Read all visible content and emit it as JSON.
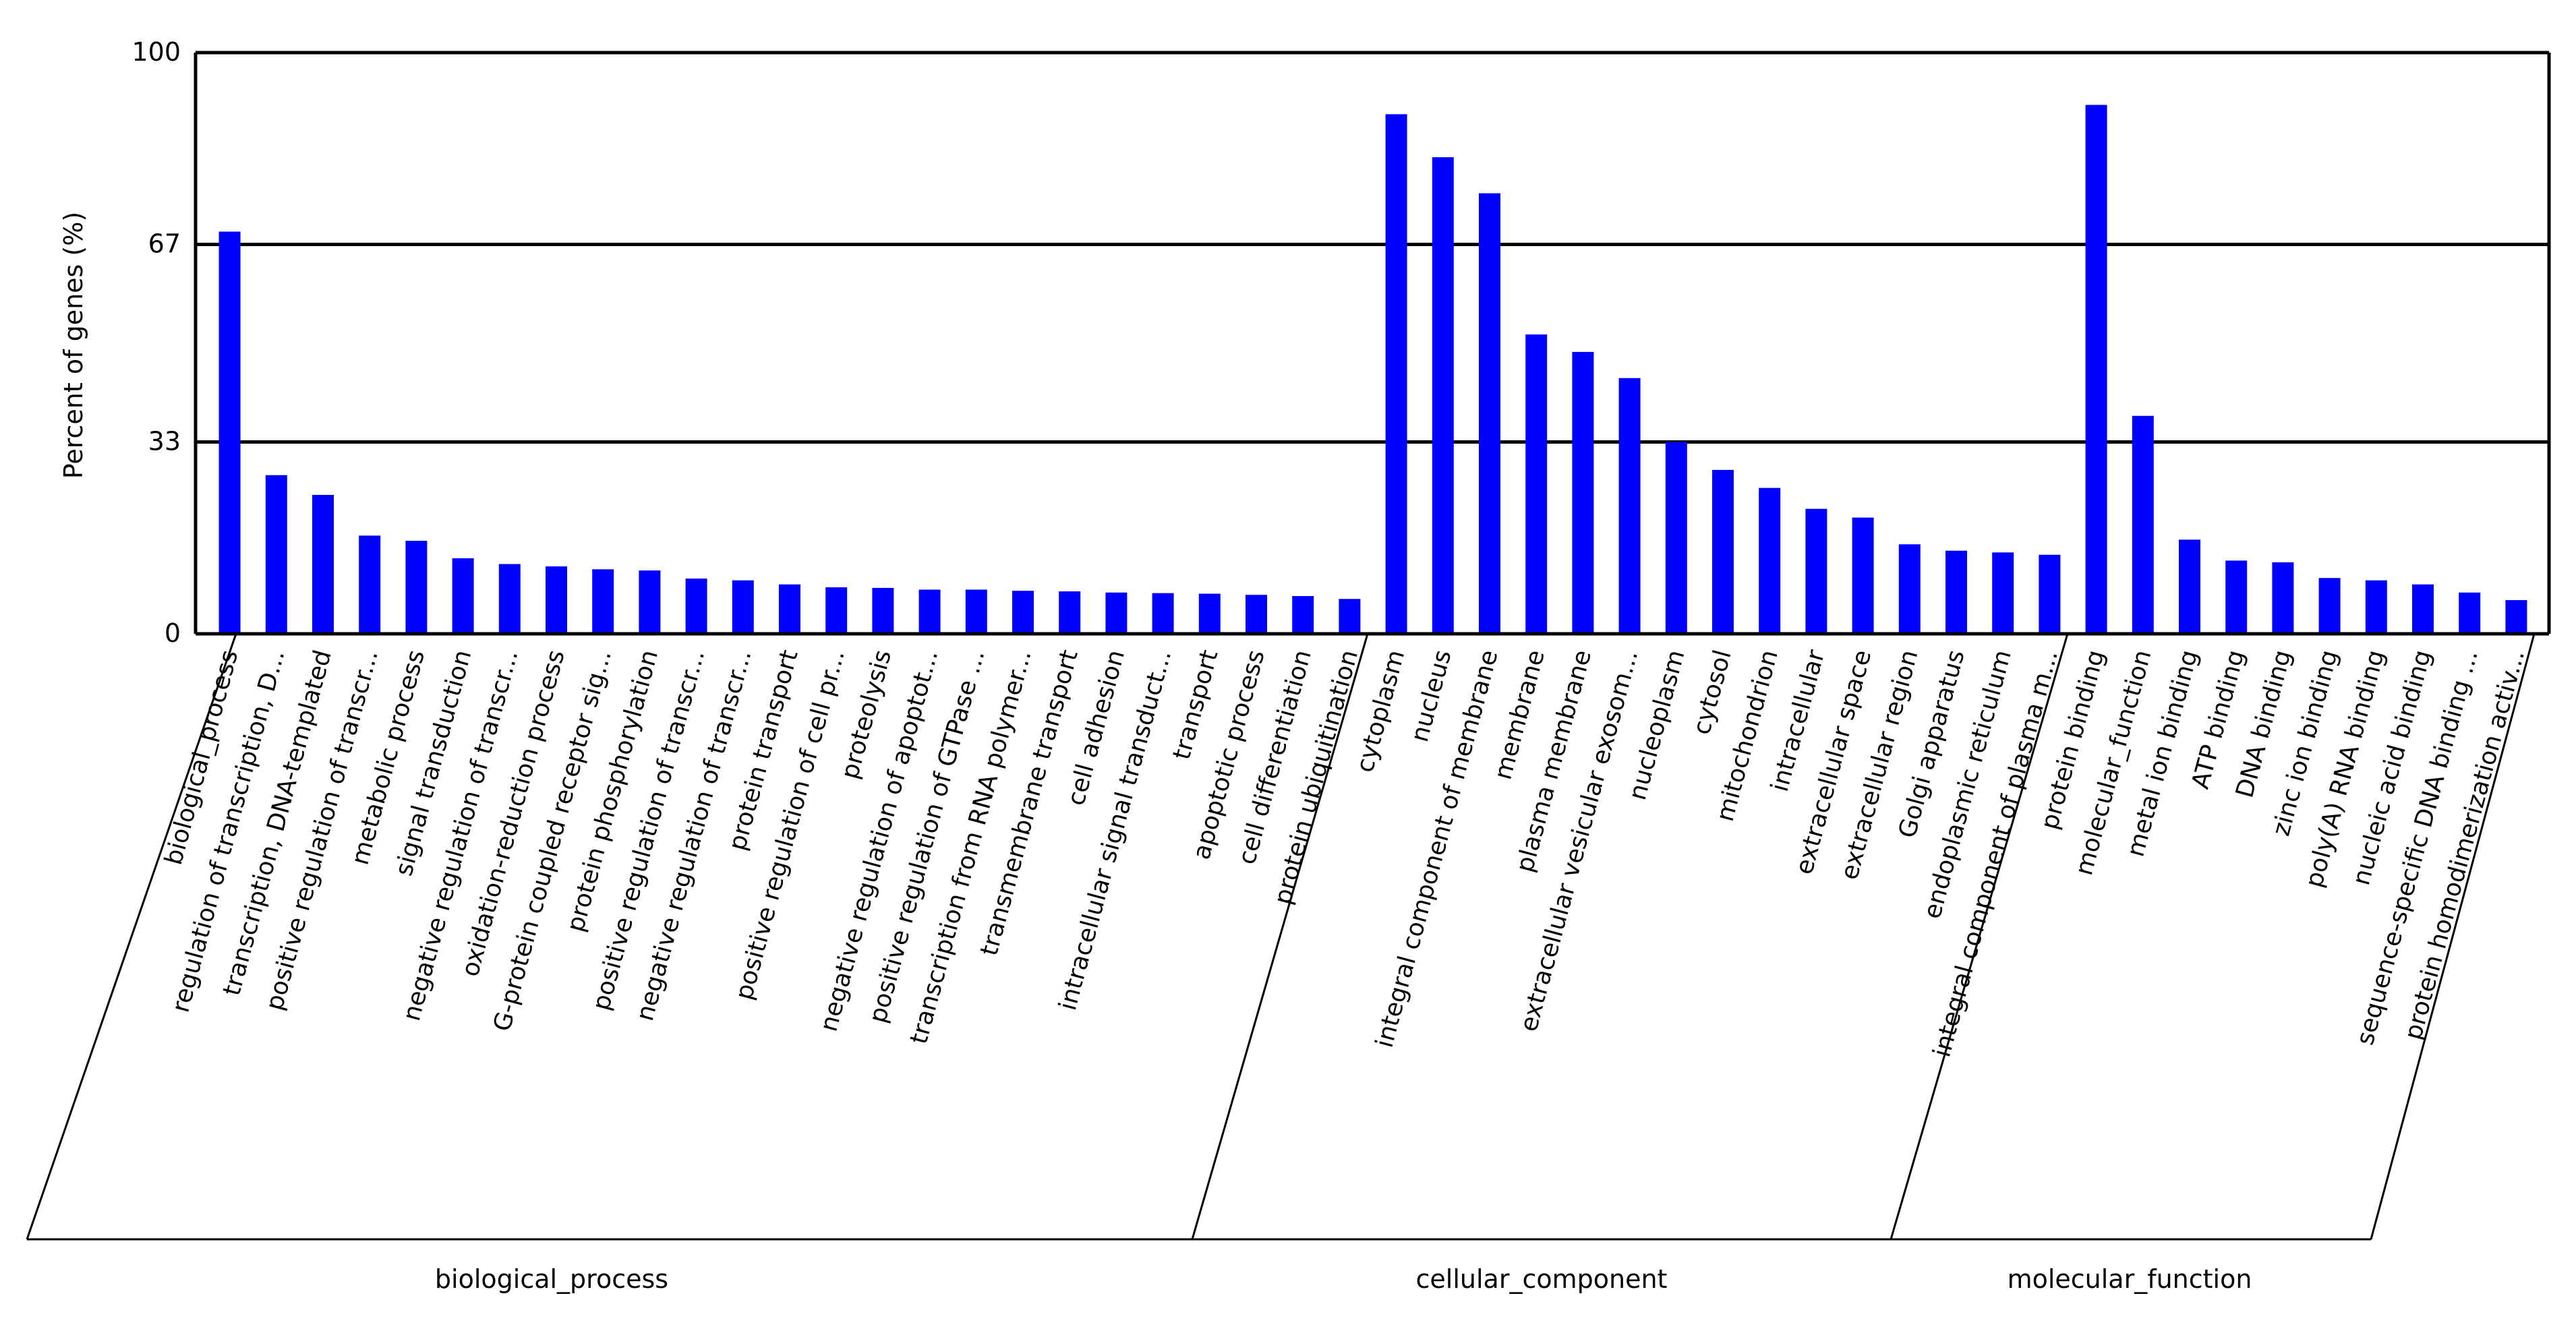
{
  "chart_data": {
    "type": "bar",
    "title": "",
    "xlabel": "",
    "ylabel": "Percent of genes (%)",
    "ylim": [
      0,
      100
    ],
    "yticks": [
      "0",
      "33",
      "67",
      "100"
    ],
    "ytick_values": [
      0,
      33,
      67,
      100
    ],
    "grid": "horizontal lines at 33, 67, 100",
    "colors": {
      "bar": "#0000ff",
      "grid": "#000000",
      "axis": "#000000"
    },
    "groups": [
      {
        "name": "biological_process",
        "count": 25
      },
      {
        "name": "cellular_component",
        "count": 15
      },
      {
        "name": "molecular_function",
        "count": 10
      }
    ],
    "categories": [
      "biological_process",
      "regulation of transcription, D...",
      "transcription, DNA-templated",
      "positive regulation of transcr...",
      "metabolic process",
      "signal transduction",
      "negative regulation of transcr...",
      "oxidation-reduction process",
      "G-protein coupled receptor sig...",
      "protein phosphorylation",
      "positive regulation of transcr...",
      "negative regulation of transcr...",
      "protein transport",
      "positive regulation of cell pr...",
      "proteolysis",
      "negative regulation of apoptot...",
      "positive regulation of GTPase ...",
      "transcription from RNA polymer...",
      "transmembrane transport",
      "cell adhesion",
      "intracellular signal transduct...",
      "transport",
      "apoptotic process",
      "cell differentiation",
      "protein ubiquitination",
      "cytoplasm",
      "nucleus",
      "integral component of membrane",
      "membrane",
      "plasma membrane",
      "extracellular vesicular exosom...",
      "nucleoplasm",
      "cytosol",
      "mitochondrion",
      "intracellular",
      "extracellular space",
      "extracellular region",
      "Golgi apparatus",
      "endoplasmic reticulum",
      "integral component of plasma m...",
      "protein binding",
      "molecular_function",
      "metal ion binding",
      "ATP binding",
      "DNA binding",
      "zinc ion binding",
      "poly(A) RNA binding",
      "nucleic acid binding",
      "sequence-specific DNA binding ...",
      "protein homodimerization activ..."
    ],
    "values": [
      69.2,
      27.3,
      23.9,
      16.9,
      16.0,
      13.0,
      12.0,
      11.6,
      11.1,
      10.9,
      9.5,
      9.2,
      8.5,
      8.0,
      7.9,
      7.6,
      7.6,
      7.4,
      7.3,
      7.1,
      7.0,
      6.9,
      6.7,
      6.5,
      6.0,
      89.4,
      82.0,
      75.8,
      51.5,
      48.5,
      44.0,
      33.0,
      28.2,
      25.1,
      21.5,
      20.0,
      15.4,
      14.3,
      14.0,
      13.6,
      91.0,
      37.5,
      16.2,
      12.6,
      12.3,
      9.6,
      9.2,
      8.5,
      7.1,
      5.8
    ]
  }
}
